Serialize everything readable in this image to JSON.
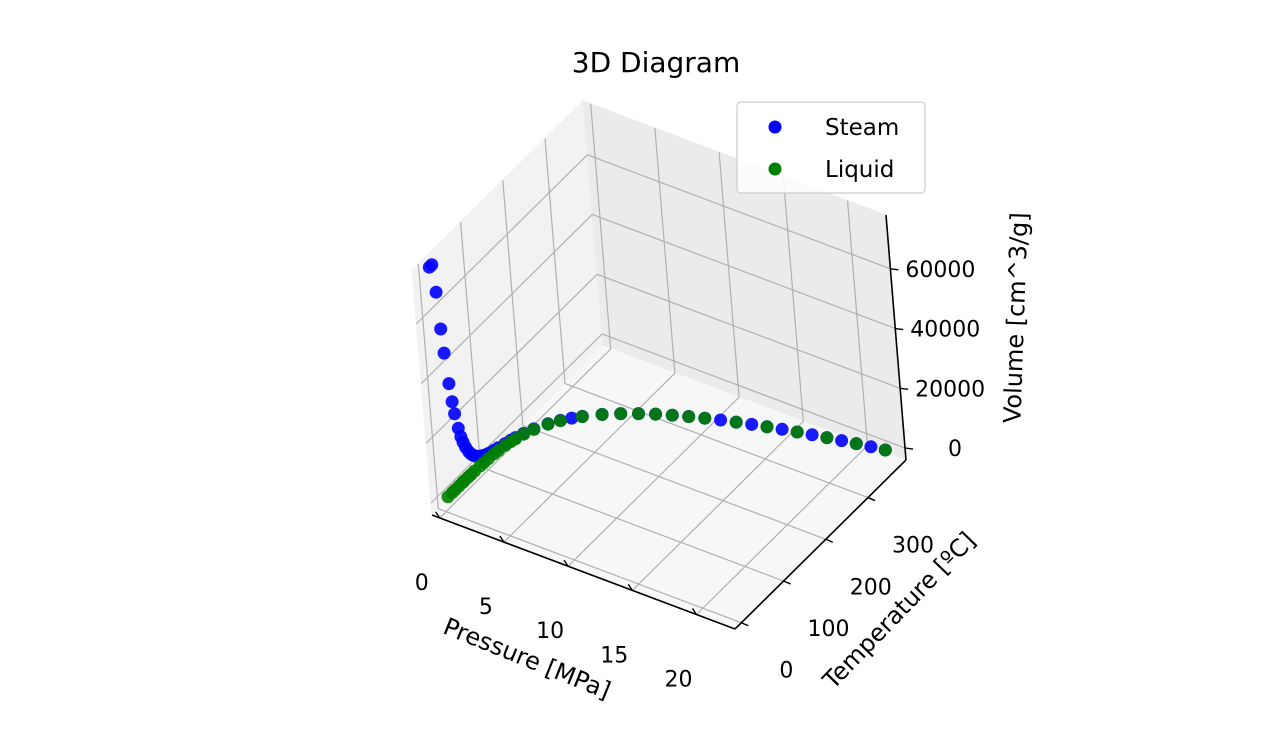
{
  "chart_data": {
    "type": "scatter",
    "projection": "3d",
    "title": "3D Diagram",
    "xlabel": "Pressure [MPa]",
    "ylabel": "Temperature [ºC]",
    "zlabel": "Volume [cm^3/g]",
    "xlim": [
      -0.6,
      23
    ],
    "ylim": [
      -15,
      390
    ],
    "zlim": [
      -4000,
      78000
    ],
    "xticks": [
      0,
      5,
      10,
      15,
      20
    ],
    "yticks": [
      0,
      100,
      200,
      300
    ],
    "zticks": [
      0,
      20000,
      40000,
      60000
    ],
    "xtick_labels": [
      "0",
      "5",
      "10",
      "15",
      "20"
    ],
    "ytick_labels": [
      "0",
      "100",
      "200",
      "300"
    ],
    "ztick_labels": [
      "0",
      "20000",
      "40000",
      "60000"
    ],
    "grid": true,
    "legend": "upper-right",
    "series": [
      {
        "name": "Steam",
        "color": "#0000ff",
        "points": [
          [
            0.001,
            7,
            129000
          ],
          [
            0.0015,
            13,
            88000
          ],
          [
            0.002,
            17.5,
            67000
          ],
          [
            0.0025,
            21,
            54200
          ],
          [
            0.003,
            24,
            45700
          ],
          [
            0.004,
            29,
            34800
          ],
          [
            0.005,
            32.9,
            28200
          ],
          [
            0.006,
            36.2,
            23700
          ],
          [
            0.008,
            41.5,
            18100
          ],
          [
            0.01,
            45.8,
            14700
          ],
          [
            0.012,
            49.4,
            12400
          ],
          [
            0.015,
            54,
            10000
          ],
          [
            0.02,
            60.1,
            7650
          ],
          [
            0.025,
            65,
            6200
          ],
          [
            0.03,
            69.1,
            5230
          ],
          [
            0.04,
            75.9,
            3990
          ],
          [
            0.05,
            81.3,
            3240
          ],
          [
            0.07,
            90,
            2370
          ],
          [
            0.1,
            99.6,
            1690
          ],
          [
            0.15,
            111.4,
            1160
          ],
          [
            0.2,
            120.2,
            886
          ],
          [
            0.3,
            133.5,
            606
          ],
          [
            0.4,
            143.6,
            463
          ],
          [
            0.5,
            151.8,
            375
          ],
          [
            0.7,
            165,
            273
          ],
          [
            1,
            179.9,
            194
          ],
          [
            1.5,
            198.3,
            132
          ],
          [
            2,
            212.4,
            100
          ],
          [
            2.5,
            224,
            80
          ],
          [
            3,
            233.9,
            67
          ],
          [
            4,
            250.4,
            50
          ],
          [
            5,
            263.9,
            39
          ],
          [
            6,
            275.6,
            32
          ],
          [
            7,
            285.9,
            27
          ],
          [
            8,
            295,
            24
          ],
          [
            9,
            303.4,
            21
          ],
          [
            10,
            311,
            18
          ],
          [
            11,
            318.1,
            16
          ],
          [
            12,
            324.7,
            14
          ],
          [
            13,
            330.9,
            13
          ],
          [
            14,
            336.7,
            11.5
          ],
          [
            15,
            342.2,
            10.3
          ],
          [
            16,
            347.4,
            9.3
          ],
          [
            17,
            352.3,
            8.4
          ],
          [
            18,
            357,
            7.5
          ],
          [
            19,
            361.5,
            6.7
          ],
          [
            20,
            365.8,
            5.8
          ],
          [
            21,
            369.9,
            5
          ],
          [
            22,
            373.8,
            3.6
          ]
        ]
      },
      {
        "name": "Liquid",
        "color": "#008000",
        "points": [
          [
            0.001,
            7,
            1
          ],
          [
            0.002,
            17.5,
            1
          ],
          [
            0.003,
            24,
            1
          ],
          [
            0.005,
            32.9,
            1
          ],
          [
            0.008,
            41.5,
            1
          ],
          [
            0.01,
            45.8,
            1
          ],
          [
            0.015,
            54,
            1
          ],
          [
            0.02,
            60.1,
            1
          ],
          [
            0.03,
            69.1,
            1
          ],
          [
            0.05,
            81.3,
            1
          ],
          [
            0.07,
            90,
            1.04
          ],
          [
            0.1,
            99.6,
            1.04
          ],
          [
            0.15,
            111.4,
            1.05
          ],
          [
            0.2,
            120.2,
            1.06
          ],
          [
            0.3,
            133.5,
            1.07
          ],
          [
            0.4,
            143.6,
            1.08
          ],
          [
            0.5,
            151.8,
            1.09
          ],
          [
            0.7,
            165,
            1.11
          ],
          [
            1,
            179.9,
            1.13
          ],
          [
            1.5,
            198.3,
            1.15
          ],
          [
            2,
            212.4,
            1.18
          ],
          [
            3,
            233.9,
            1.22
          ],
          [
            4,
            250.4,
            1.25
          ],
          [
            5,
            263.9,
            1.29
          ],
          [
            6,
            275.6,
            1.32
          ],
          [
            7,
            285.9,
            1.35
          ],
          [
            8,
            295,
            1.38
          ],
          [
            9,
            303.4,
            1.42
          ],
          [
            10,
            311,
            1.45
          ],
          [
            12,
            324.7,
            1.53
          ],
          [
            14,
            336.7,
            1.61
          ],
          [
            16,
            347.4,
            1.71
          ],
          [
            18,
            357,
            1.84
          ],
          [
            20,
            365.8,
            2.04
          ],
          [
            22,
            373.8,
            2.75
          ]
        ]
      }
    ]
  }
}
